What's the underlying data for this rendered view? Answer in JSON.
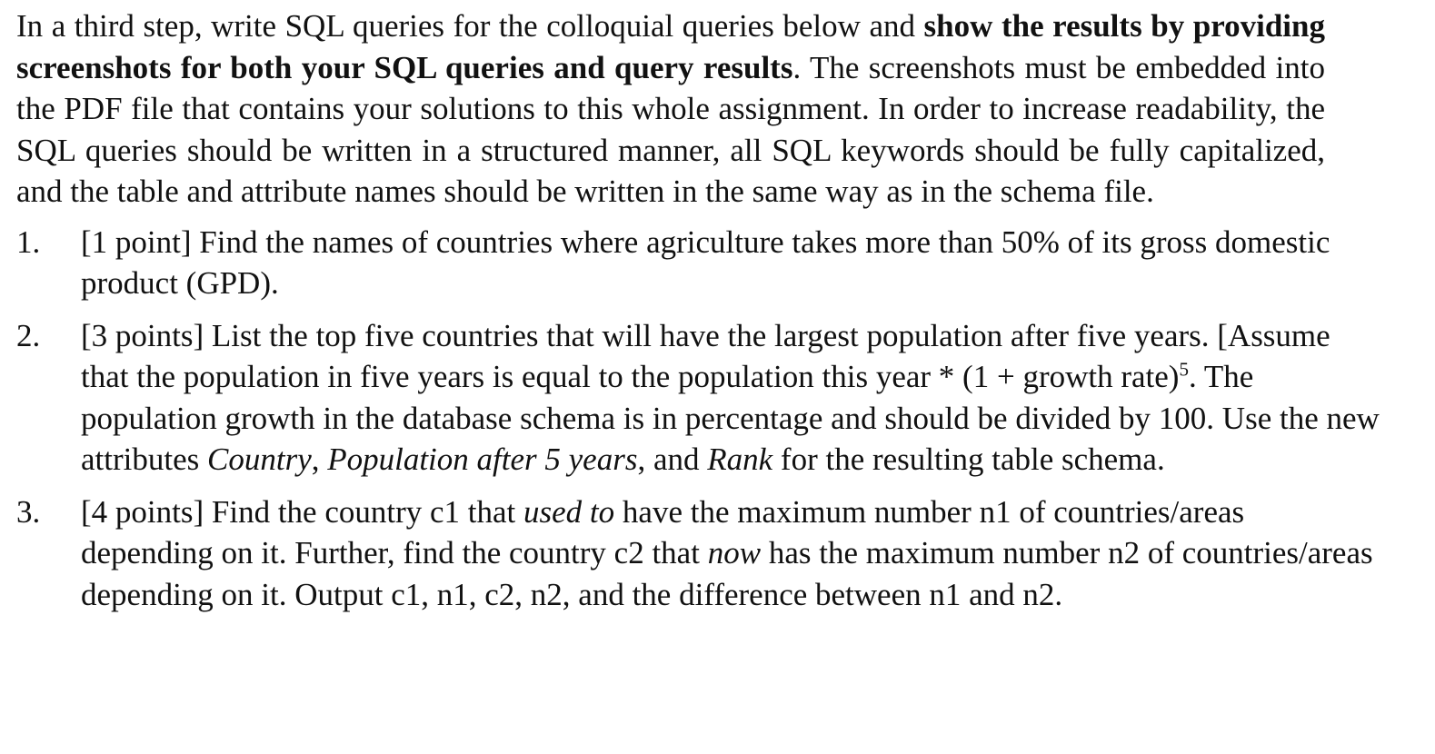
{
  "intro": {
    "part1": "In a third step, write SQL queries for the colloquial queries below and ",
    "bold": "show the results by providing screenshots for both your SQL queries and query results",
    "part2": ". The screenshots must be embedded into the PDF file that contains your solutions to this whole assignment. In order to increase readability, the SQL queries should be written in a structured manner, all SQL keywords should be fully capitalized, and the table and attribute names should be written in the same way as in the schema file."
  },
  "questions": [
    {
      "number": "1.",
      "text": "[1 point] Find the names of countries where agriculture takes more than 50% of its gross domestic product (GPD)."
    },
    {
      "number": "2.",
      "a": "[3 points] List the top five countries that will have the largest population after five years. [Assume that the population in five years is equal to the population this year * (1 + growth rate)",
      "sup": "5",
      "b": ". The population growth in the database schema is in percentage and should be divided by 100. Use the new attributes ",
      "attr1": "Country",
      "c": ", ",
      "attr2": "Population after 5 years",
      "d": ", and ",
      "attr3": "Rank",
      "e": " for the resulting table schema."
    },
    {
      "number": "3.",
      "a": "[4 points] Find the country c1 that ",
      "em1": "used to",
      "b": " have the maximum number n1 of countries/areas depending on it. Further, find the country c2 that ",
      "em2": "now",
      "c": " has the maximum number n2 of countries/areas depending on it. Output c1, n1, c2, n2, and the difference between n1 and n2."
    }
  ]
}
